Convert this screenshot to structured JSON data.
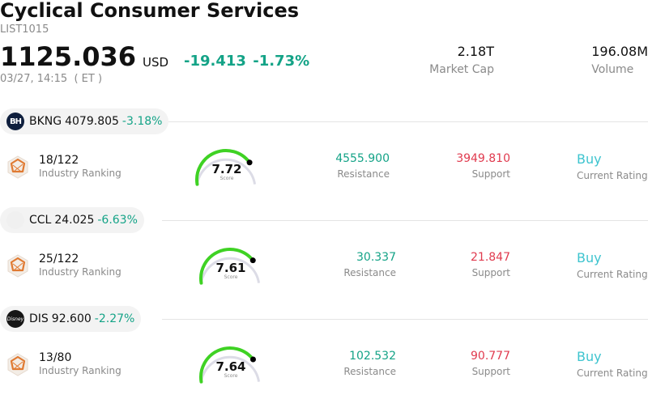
{
  "header": {
    "title": "Cyclical Consumer Services",
    "code": "LIST1015",
    "price": "1125.036",
    "currency": "USD",
    "change": "-19.413",
    "change_pct": "-1.73%",
    "timestamp": "03/27, 14:15  ( ET )",
    "market_cap_value": "2.18T",
    "market_cap_label": "Market Cap",
    "volume_value": "196.08M",
    "volume_label": "Volume"
  },
  "colors": {
    "up": "#14a387",
    "down": "#e03a4e",
    "rating": "#3ec4cf",
    "gauge": "#3fd224",
    "gauge_track": "#dcdce6"
  },
  "stocks": [
    {
      "ticker": "BKNG",
      "price": "4079.805",
      "change_pct": "-3.18%",
      "logo_text": "BH",
      "rank": "18/122",
      "rank_label": "Industry Ranking",
      "score": "7.72",
      "score_label": "Score",
      "score_value": 7.72,
      "resistance": "4555.900",
      "resistance_label": "Resistance",
      "support": "3949.810",
      "support_label": "Support",
      "rating": "Buy",
      "rating_label": "Current Rating"
    },
    {
      "ticker": "CCL",
      "price": "24.025",
      "change_pct": "-6.63%",
      "logo_text": "",
      "rank": "25/122",
      "rank_label": "Industry Ranking",
      "score": "7.61",
      "score_label": "Score",
      "score_value": 7.61,
      "resistance": "30.337",
      "resistance_label": "Resistance",
      "support": "21.847",
      "support_label": "Support",
      "rating": "Buy",
      "rating_label": "Current Rating"
    },
    {
      "ticker": "DIS",
      "price": "92.600",
      "change_pct": "-2.27%",
      "logo_text": "Disney",
      "rank": "13/80",
      "rank_label": "Industry Ranking",
      "score": "7.64",
      "score_label": "Score",
      "score_value": 7.64,
      "resistance": "102.532",
      "resistance_label": "Resistance",
      "support": "90.777",
      "support_label": "Support",
      "rating": "Buy",
      "rating_label": "Current Rating"
    }
  ]
}
